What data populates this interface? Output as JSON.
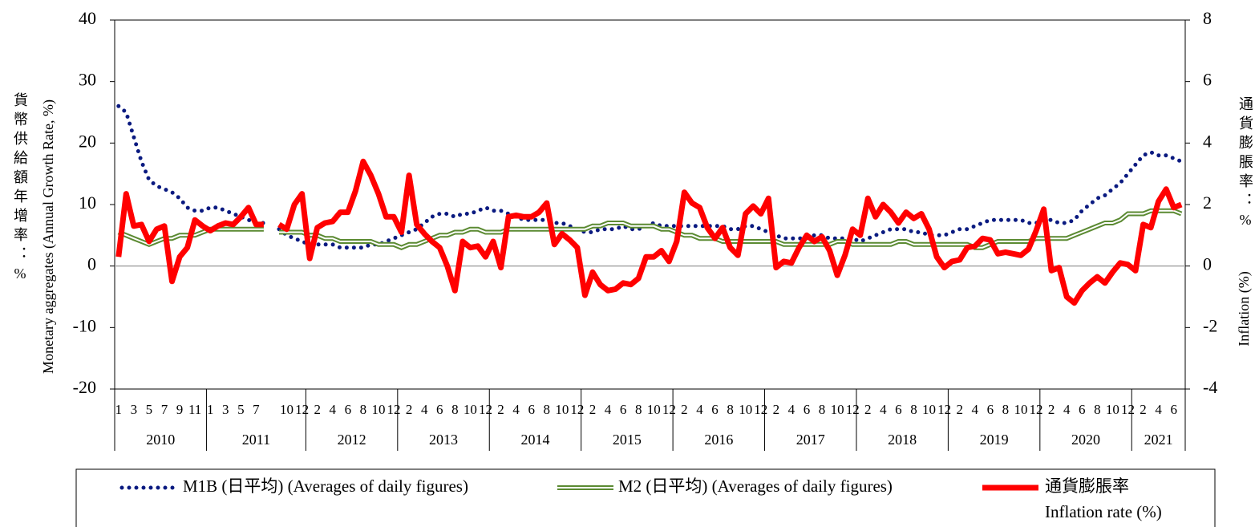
{
  "chart_data": {
    "type": "line",
    "ylabel": "Monetary aggregates (Annual Growth Rate, %)",
    "ylabel_zh": "貨幣供給額年增率：%",
    "y2label": "Inflation (%)",
    "y2label_zh": "通貨膨脹率：%",
    "ylim": [
      -20,
      40
    ],
    "yticks": [
      -20,
      -10,
      0,
      10,
      20,
      30,
      40
    ],
    "y2lim": [
      -4,
      8
    ],
    "y2ticks": [
      -4,
      -2,
      0,
      2,
      4,
      6,
      8
    ],
    "years": [
      {
        "label": "2010",
        "months": 12
      },
      {
        "label": "2011",
        "months": 13
      },
      {
        "label": "2012",
        "months": 12
      },
      {
        "label": "2013",
        "months": 12
      },
      {
        "label": "2014",
        "months": 12
      },
      {
        "label": "2015",
        "months": 12
      },
      {
        "label": "2016",
        "months": 12
      },
      {
        "label": "2017",
        "months": 12
      },
      {
        "label": "2018",
        "months": 12
      },
      {
        "label": "2019",
        "months": 12
      },
      {
        "label": "2020",
        "months": 12
      },
      {
        "label": "2021",
        "months": 7
      }
    ],
    "categories": [
      "1",
      null,
      "3",
      null,
      "5",
      null,
      "7",
      null,
      "9",
      null,
      "11",
      null,
      "1",
      null,
      "3",
      null,
      "5",
      null,
      "7",
      null,
      null,
      null,
      "10",
      null,
      "12",
      null,
      "2",
      null,
      "4",
      null,
      "6",
      null,
      "8",
      null,
      "10",
      null,
      "12",
      null,
      "2",
      null,
      "4",
      null,
      "6",
      null,
      "8",
      null,
      "10",
      null,
      "12",
      null,
      "2",
      null,
      "4",
      null,
      "6",
      null,
      "8",
      null,
      "10",
      null,
      "12",
      null,
      "2",
      null,
      "4",
      null,
      "6",
      null,
      "8",
      null,
      "10",
      null,
      "12",
      null,
      "2",
      null,
      "4",
      null,
      "6",
      null,
      "8",
      null,
      "10",
      null,
      "12",
      null,
      "2",
      null,
      "4",
      null,
      "6",
      null,
      "8",
      null,
      "10",
      null,
      "12",
      null,
      "2",
      null,
      "4",
      null,
      "6",
      null,
      "8",
      null,
      "10",
      null,
      "12",
      null,
      "2",
      null,
      "4",
      null,
      "6",
      null,
      "8",
      null,
      "10",
      null,
      "12",
      null,
      "2",
      null,
      "4",
      null,
      "6",
      null,
      "8",
      null,
      "10",
      null,
      "12",
      null,
      "2",
      null,
      "4",
      null,
      "6",
      null
    ],
    "series": [
      {
        "name": "M1B (日平均) (Averages of daily figures)",
        "color": "#0a1a80",
        "style": "dotted",
        "values": [
          26,
          25,
          21,
          17,
          14,
          13,
          12.5,
          12,
          11,
          9.5,
          9,
          9,
          9.5,
          9.5,
          9,
          8.5,
          8,
          7.5,
          7,
          7,
          null,
          6,
          5,
          4.5,
          4,
          3.5,
          3.5,
          3.5,
          3.5,
          3,
          3,
          3,
          3,
          3.5,
          3.5,
          4,
          4.5,
          5,
          5.5,
          6,
          7,
          8,
          8.5,
          8.5,
          8,
          8.5,
          8.5,
          9,
          9.5,
          9,
          9,
          8.5,
          8,
          7.5,
          7.5,
          7.5,
          7.5,
          7,
          7,
          6.5,
          6,
          5.5,
          5.5,
          6,
          6,
          6,
          6.5,
          6,
          6,
          6.5,
          7,
          6.5,
          6.5,
          6.5,
          6.5,
          6.5,
          6.5,
          6.5,
          6.5,
          6.5,
          6,
          6,
          6.5,
          6.5,
          6,
          5.5,
          5,
          4.5,
          4.5,
          4.5,
          4.5,
          5,
          5,
          4.5,
          4.5,
          4.5,
          4.5,
          4,
          4.5,
          5,
          5.5,
          6,
          6,
          6,
          5.5,
          5.5,
          5,
          5,
          5,
          5.5,
          6,
          6,
          6.5,
          7,
          7.5,
          7.5,
          7.5,
          7.5,
          7.5,
          7,
          7,
          7.5,
          7.5,
          7,
          7,
          7.5,
          9,
          10,
          11,
          11.5,
          12.5,
          13.5,
          15,
          16.5,
          18,
          18.5,
          18,
          18,
          17.5,
          17
        ]
      },
      {
        "name": "M2 (日平均) (Averages of daily figures)",
        "color": "#5b8a32",
        "style": "double",
        "values": [
          5.5,
          5,
          4.5,
          4,
          3.5,
          4,
          4.5,
          4.5,
          5,
          5,
          5,
          5.5,
          6,
          6,
          6,
          6,
          6,
          6,
          6,
          6,
          null,
          5.5,
          5.5,
          5.5,
          5.5,
          5,
          5,
          4.5,
          4.5,
          4,
          4,
          4,
          4,
          4,
          3.5,
          3.5,
          3.5,
          3,
          3.5,
          3.5,
          4,
          4.5,
          5,
          5,
          5.5,
          5.5,
          6,
          6,
          5.5,
          5.5,
          5.5,
          6,
          6,
          6,
          6,
          6,
          6,
          6,
          6,
          6,
          6,
          6,
          6.5,
          6.5,
          7,
          7,
          7,
          6.5,
          6.5,
          6.5,
          6.5,
          6,
          6,
          5.5,
          5,
          5,
          4.5,
          4.5,
          4.5,
          4,
          4,
          4,
          4,
          4,
          4,
          4,
          4,
          3.5,
          3.5,
          3.5,
          3.5,
          3.5,
          3.5,
          3.5,
          4,
          4,
          3.5,
          3.5,
          3.5,
          3.5,
          3.5,
          3.5,
          4,
          4,
          3.5,
          3.5,
          3.5,
          3.5,
          3.5,
          3.5,
          3.5,
          3.5,
          3,
          3,
          3.5,
          4,
          4,
          4,
          4,
          4,
          4.5,
          4.5,
          4.5,
          4.5,
          4.5,
          5,
          5.5,
          6,
          6.5,
          7,
          7,
          7.5,
          8.5,
          8.5,
          8.5,
          9,
          9,
          9,
          9,
          8.5
        ]
      },
      {
        "name": [
          "通貨膨脹率",
          "Inflation rate (%)"
        ],
        "color": "#ff0000",
        "style": "solid",
        "axis": "y2",
        "values": [
          0.3,
          2.35,
          1.3,
          1.35,
          0.8,
          1.2,
          1.3,
          -0.5,
          0.3,
          0.6,
          1.5,
          1.3,
          1.15,
          1.3,
          1.4,
          1.35,
          1.6,
          1.9,
          1.35,
          1.35,
          null,
          1.35,
          1.2,
          2.0,
          2.35,
          0.25,
          1.25,
          1.4,
          1.45,
          1.75,
          1.75,
          2.45,
          3.4,
          2.95,
          2.35,
          1.6,
          1.6,
          1.1,
          2.95,
          1.35,
          1.05,
          0.8,
          0.6,
          0.0,
          -0.8,
          0.8,
          0.6,
          0.65,
          0.3,
          0.8,
          -0.05,
          1.6,
          1.65,
          1.6,
          1.6,
          1.75,
          2.05,
          0.7,
          1.05,
          0.85,
          0.6,
          -0.95,
          -0.2,
          -0.6,
          -0.8,
          -0.75,
          -0.55,
          -0.6,
          -0.4,
          0.3,
          0.3,
          0.5,
          0.15,
          0.8,
          2.4,
          2.05,
          1.9,
          1.25,
          0.9,
          1.25,
          0.6,
          0.35,
          1.7,
          1.95,
          1.7,
          2.2,
          -0.05,
          0.15,
          0.1,
          0.6,
          1.0,
          0.8,
          0.95,
          0.5,
          -0.3,
          0.35,
          1.2,
          1.0,
          2.2,
          1.6,
          2.0,
          1.75,
          1.4,
          1.75,
          1.55,
          1.7,
          1.2,
          0.3,
          -0.05,
          0.15,
          0.2,
          0.6,
          0.65,
          0.9,
          0.85,
          0.4,
          0.45,
          0.4,
          0.35,
          0.55,
          1.15,
          1.85,
          -0.15,
          -0.05,
          -1.0,
          -1.2,
          -0.8,
          -0.55,
          -0.35,
          -0.55,
          -0.2,
          0.1,
          0.05,
          -0.15,
          1.35,
          1.25,
          2.1,
          2.5,
          1.9,
          2.0
        ]
      }
    ]
  }
}
